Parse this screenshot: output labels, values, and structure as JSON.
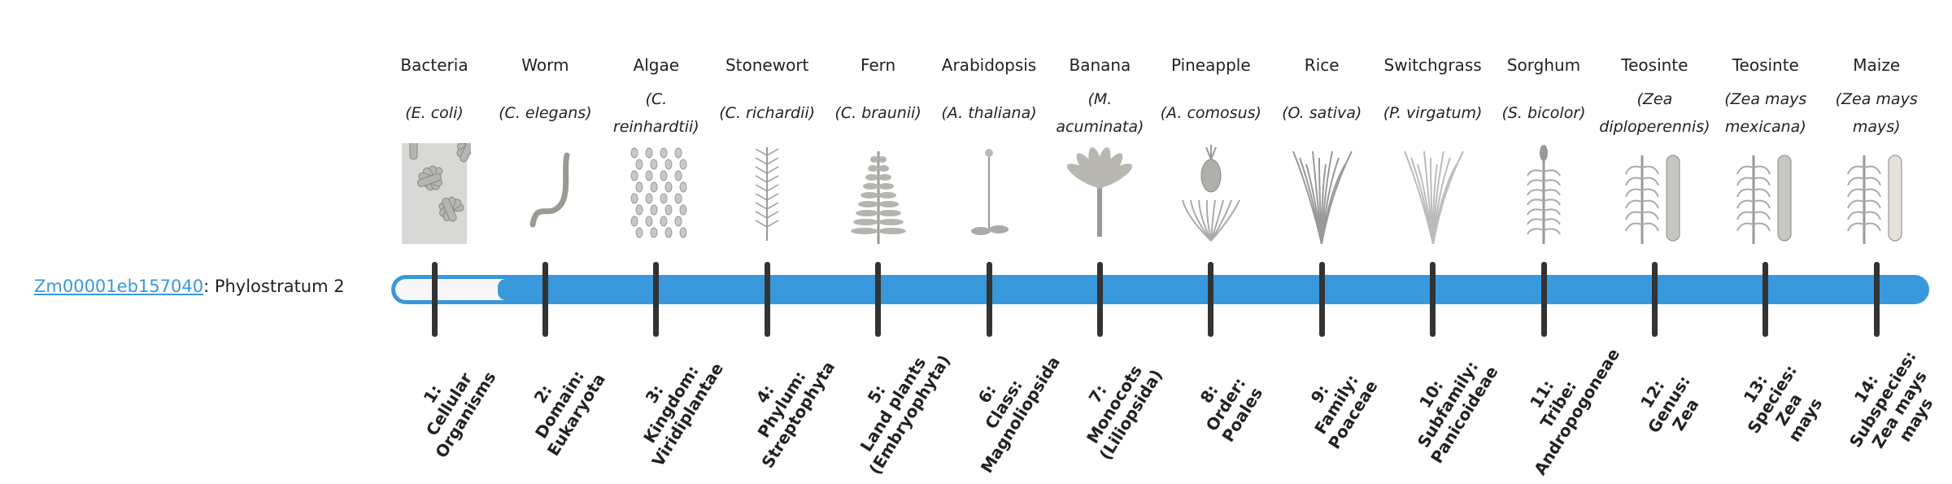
{
  "gene": {
    "id": "Zm00001eb157040",
    "suffix": ": Phylostratum 2"
  },
  "phylostratum": 2,
  "total_strata": 14,
  "colors": {
    "bar": "#3898db",
    "tick": "#333333",
    "link": "#3a97db"
  },
  "columns": [
    {
      "common": "Bacteria",
      "latin": "(E. coli)",
      "icon": "bacteria-icon",
      "stratum": [
        "1:",
        "Cellular",
        "Organisms"
      ]
    },
    {
      "common": "Worm",
      "latin": "(C. elegans)",
      "icon": "worm-icon",
      "stratum": [
        "2:",
        "Domain:",
        "Eukaryota"
      ]
    },
    {
      "common": "Algae",
      "latin": "(C. reinhardtii)",
      "icon": "algae-icon",
      "stratum": [
        "3:",
        "Kingdom:",
        "Viridiplantae"
      ]
    },
    {
      "common": "Stonewort",
      "latin": "(C. richardii)",
      "icon": "stonewort-icon",
      "stratum": [
        "4:",
        "Phylum:",
        "Streptophyta"
      ]
    },
    {
      "common": "Fern",
      "latin": "(C. braunii)",
      "icon": "fern-icon",
      "stratum": [
        "5:",
        "Land plants",
        "(Embryophyta)"
      ]
    },
    {
      "common": "Arabidopsis",
      "latin": "(A. thaliana)",
      "icon": "arabidopsis-icon",
      "stratum": [
        "6:",
        "Class:",
        "Magnoliopsida"
      ]
    },
    {
      "common": "Banana",
      "latin": "(M. acuminata)",
      "icon": "banana-icon",
      "stratum": [
        "7:",
        "Monocots",
        "(Liliopsida)"
      ]
    },
    {
      "common": "Pineapple",
      "latin": "(A. comosus)",
      "icon": "pineapple-icon",
      "stratum": [
        "8:",
        "Order:",
        "Poales"
      ]
    },
    {
      "common": "Rice",
      "latin": "(O. sativa)",
      "icon": "rice-icon",
      "stratum": [
        "9:",
        "Family:",
        "Poaceae"
      ]
    },
    {
      "common": "Switchgrass",
      "latin": "(P. virgatum)",
      "icon": "switchgrass-icon",
      "stratum": [
        "10:",
        "Subfamily:",
        "Panicoideae"
      ]
    },
    {
      "common": "Sorghum",
      "latin": "(S. bicolor)",
      "icon": "sorghum-icon",
      "stratum": [
        "11:",
        "Tribe:",
        "Andropogoneae"
      ]
    },
    {
      "common": "Teosinte",
      "latin": "(Zea diploperennis)",
      "icon": "teosinte-icon",
      "stratum": [
        "12:",
        "Genus:",
        "Zea"
      ]
    },
    {
      "common": "Teosinte",
      "latin": "(Zea mays mexicana)",
      "icon": "teosinte-icon",
      "stratum": [
        "13:",
        "Species:",
        "Zea",
        "mays"
      ]
    },
    {
      "common": "Maize",
      "latin": "(Zea mays mays)",
      "icon": "maize-icon",
      "stratum": [
        "14:",
        "Subspecies:",
        "Zea mays",
        "mays"
      ]
    }
  ]
}
